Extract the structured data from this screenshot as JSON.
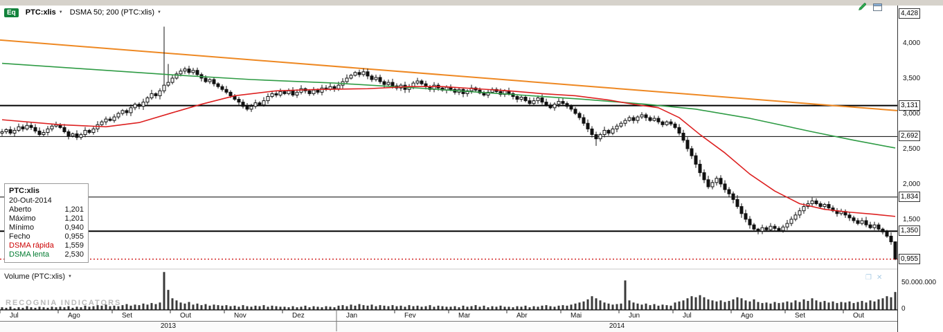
{
  "toolbar": {
    "instrument_badge": "Eq",
    "symbol": "PTC:xlis",
    "indicator": "DSMA 50; 200 (PTC:xlis)"
  },
  "icons": {
    "caret": "▼",
    "pane_restore": "❐",
    "pane_close": "✕"
  },
  "watermark": "RECOGNIA INDICATORS",
  "volume_pane": {
    "label": "Volume (PTC:xlis)"
  },
  "tooltip": {
    "title": "PTC:xlis",
    "date": "20-Out-2014",
    "rows": [
      {
        "label": "Aberto",
        "value": "1,201",
        "label_color": "#111111"
      },
      {
        "label": "Máximo",
        "value": "1,201",
        "label_color": "#111111"
      },
      {
        "label": "Mínimo",
        "value": "0,940",
        "label_color": "#111111"
      },
      {
        "label": "Fecho",
        "value": "0,955",
        "label_color": "#111111"
      },
      {
        "label": "DSMA rápida",
        "value": "1,559",
        "label_color": "#cc0000"
      },
      {
        "label": "DSMA lenta",
        "value": "2,530",
        "label_color": "#007a2f"
      }
    ]
  },
  "colors": {
    "accent_green_badge": "#12823b",
    "sma_fast": "#dd2020",
    "sma_slow": "#2e9b44",
    "trendline": "#ee8822",
    "last_price": "#cc0000",
    "candle": "#111111",
    "volume_bar": "#3a3a3a"
  },
  "chart_data": {
    "type": "candlestick",
    "title": "PTC:xlis daily candles with DSMA 50/200 overlays and volume",
    "ylim": [
      0.8,
      4.5
    ],
    "y_axis": {
      "ticks": [
        {
          "label": "4,000",
          "value": 4.0
        },
        {
          "label": "3,500",
          "value": 3.5
        },
        {
          "label": "3,000",
          "value": 3.0
        },
        {
          "label": "2,500",
          "value": 2.5
        },
        {
          "label": "2,000",
          "value": 2.0
        },
        {
          "label": "1,500",
          "value": 1.5
        }
      ],
      "badges": [
        {
          "label": "4,428",
          "value": 4.428
        },
        {
          "label": "3,131",
          "value": 3.131
        },
        {
          "label": "2,692",
          "value": 2.692
        },
        {
          "label": "1,834",
          "value": 1.834
        },
        {
          "label": "1,350",
          "value": 1.35
        },
        {
          "label": "0,955",
          "value": 0.955
        }
      ]
    },
    "volume_axis": {
      "max_value": 50,
      "labels": [
        {
          "text": "50.000.000",
          "value": 50
        },
        {
          "text": "0",
          "value": 0
        }
      ]
    },
    "x_axis": {
      "months": [
        {
          "label": "Jul",
          "start_index": 0
        },
        {
          "label": "Ago",
          "start_index": 14
        },
        {
          "label": "Set",
          "start_index": 27
        },
        {
          "label": "Out",
          "start_index": 41
        },
        {
          "label": "Nov",
          "start_index": 54
        },
        {
          "label": "Dez",
          "start_index": 68
        },
        {
          "label": "Jan",
          "start_index": 81
        },
        {
          "label": "Fev",
          "start_index": 95
        },
        {
          "label": "Mar",
          "start_index": 108
        },
        {
          "label": "Abr",
          "start_index": 122
        },
        {
          "label": "Mai",
          "start_index": 135
        },
        {
          "label": "Jun",
          "start_index": 149
        },
        {
          "label": "Jul",
          "start_index": 162
        },
        {
          "label": "Ago",
          "start_index": 176
        },
        {
          "label": "Set",
          "start_index": 189
        },
        {
          "label": "Out",
          "start_index": 203
        }
      ],
      "years": [
        {
          "label": "2013",
          "start_index": 0,
          "end_index": 81
        },
        {
          "label": "2014",
          "start_index": 81,
          "end_index": 216
        }
      ]
    },
    "candles": {
      "color": "#111111",
      "up_fill": "#ffffff",
      "open_first": 2.74,
      "closes": [
        2.76,
        2.79,
        2.74,
        2.78,
        2.83,
        2.8,
        2.85,
        2.82,
        2.77,
        2.72,
        2.75,
        2.8,
        2.84,
        2.86,
        2.82,
        2.76,
        2.7,
        2.73,
        2.68,
        2.72,
        2.78,
        2.75,
        2.8,
        2.86,
        2.9,
        2.94,
        2.92,
        2.97,
        3.02,
        3.06,
        3.03,
        3.1,
        3.15,
        3.12,
        3.18,
        3.24,
        3.3,
        3.27,
        3.34,
        3.42,
        3.46,
        3.52,
        3.58,
        3.62,
        3.65,
        3.6,
        3.63,
        3.57,
        3.52,
        3.47,
        3.5,
        3.44,
        3.4,
        3.36,
        3.32,
        3.27,
        3.22,
        3.18,
        3.12,
        3.08,
        3.12,
        3.17,
        3.14,
        3.2,
        3.26,
        3.3,
        3.28,
        3.33,
        3.3,
        3.34,
        3.28,
        3.32,
        3.37,
        3.34,
        3.3,
        3.35,
        3.32,
        3.38,
        3.36,
        3.4,
        3.37,
        3.42,
        3.47,
        3.52,
        3.56,
        3.6,
        3.57,
        3.61,
        3.55,
        3.5,
        3.53,
        3.47,
        3.43,
        3.46,
        3.41,
        3.38,
        3.42,
        3.36,
        3.4,
        3.45,
        3.48,
        3.44,
        3.4,
        3.36,
        3.42,
        3.38,
        3.35,
        3.39,
        3.36,
        3.32,
        3.36,
        3.3,
        3.34,
        3.38,
        3.35,
        3.31,
        3.28,
        3.32,
        3.36,
        3.33,
        3.29,
        3.34,
        3.3,
        3.26,
        3.22,
        3.25,
        3.2,
        3.16,
        3.2,
        3.24,
        3.18,
        3.14,
        3.1,
        3.15,
        3.19,
        3.16,
        3.12,
        3.08,
        3.02,
        2.96,
        2.88,
        2.8,
        2.72,
        2.66,
        2.72,
        2.78,
        2.74,
        2.8,
        2.84,
        2.88,
        2.92,
        2.96,
        2.92,
        2.97,
        3.0,
        2.96,
        2.92,
        2.95,
        2.9,
        2.86,
        2.9,
        2.87,
        2.82,
        2.74,
        2.64,
        2.52,
        2.42,
        2.3,
        2.18,
        2.08,
        1.98,
        2.04,
        2.1,
        2.02,
        1.94,
        1.88,
        1.8,
        1.7,
        1.6,
        1.52,
        1.44,
        1.38,
        1.35,
        1.4,
        1.37,
        1.42,
        1.39,
        1.36,
        1.41,
        1.46,
        1.52,
        1.58,
        1.64,
        1.7,
        1.74,
        1.78,
        1.74,
        1.7,
        1.73,
        1.68,
        1.64,
        1.6,
        1.63,
        1.58,
        1.54,
        1.5,
        1.46,
        1.5,
        1.44,
        1.4,
        1.44,
        1.38,
        1.34,
        1.28,
        1.2,
        0.955
      ],
      "high_overrides": {
        "39": 4.25,
        "40": 3.72,
        "215": 1.205
      },
      "low_overrides": {
        "143": 2.56,
        "215": 0.94
      }
    },
    "volumes_millions": [
      5,
      4,
      6,
      3,
      5,
      4,
      7,
      5,
      4,
      6,
      5,
      4,
      6,
      5,
      6,
      5,
      7,
      4,
      6,
      5,
      8,
      6,
      7,
      9,
      8,
      10,
      7,
      8,
      7,
      9,
      11,
      8,
      10,
      9,
      12,
      10,
      13,
      11,
      14,
      72,
      38,
      22,
      18,
      14,
      12,
      15,
      10,
      12,
      9,
      11,
      8,
      10,
      9,
      8,
      9,
      7,
      8,
      6,
      9,
      7,
      6,
      8,
      7,
      9,
      6,
      8,
      7,
      6,
      6,
      5,
      7,
      5,
      6,
      8,
      5,
      7,
      6,
      5,
      7,
      6,
      5,
      8,
      9,
      7,
      10,
      8,
      11,
      9,
      8,
      10,
      7,
      9,
      8,
      7,
      9,
      7,
      8,
      6,
      9,
      7,
      8,
      6,
      7,
      9,
      6,
      8,
      7,
      6,
      6,
      7,
      5,
      8,
      6,
      7,
      9,
      6,
      8,
      5,
      7,
      6,
      8,
      6,
      6,
      5,
      7,
      6,
      8,
      5,
      7,
      6,
      8,
      9,
      7,
      6,
      8,
      9,
      8,
      10,
      12,
      14,
      16,
      20,
      26,
      22,
      18,
      14,
      12,
      10,
      11,
      12,
      56,
      18,
      14,
      12,
      10,
      12,
      9,
      11,
      8,
      10,
      9,
      8,
      14,
      16,
      18,
      22,
      26,
      24,
      28,
      24,
      20,
      18,
      16,
      18,
      15,
      17,
      20,
      24,
      22,
      18,
      16,
      20,
      15,
      13,
      14,
      12,
      15,
      13,
      14,
      16,
      14,
      18,
      15,
      20,
      17,
      22,
      18,
      15,
      17,
      14,
      16,
      13,
      15,
      14,
      16,
      13,
      15,
      17,
      14,
      18,
      16,
      20,
      22,
      26,
      24,
      34
    ],
    "overlays": {
      "sma_fast": {
        "name": "DSMA 50 (rápida)",
        "color": "#dd2020",
        "points": [
          [
            0,
            2.93
          ],
          [
            14,
            2.86
          ],
          [
            25,
            2.83
          ],
          [
            33,
            2.89
          ],
          [
            41,
            3.03
          ],
          [
            48,
            3.15
          ],
          [
            56,
            3.27
          ],
          [
            66,
            3.34
          ],
          [
            76,
            3.36
          ],
          [
            88,
            3.37
          ],
          [
            98,
            3.4
          ],
          [
            106,
            3.4
          ],
          [
            114,
            3.37
          ],
          [
            122,
            3.34
          ],
          [
            130,
            3.3
          ],
          [
            138,
            3.27
          ],
          [
            146,
            3.21
          ],
          [
            152,
            3.15
          ],
          [
            158,
            3.1
          ],
          [
            163,
            2.96
          ],
          [
            168,
            2.72
          ],
          [
            174,
            2.46
          ],
          [
            180,
            2.16
          ],
          [
            186,
            1.92
          ],
          [
            192,
            1.74
          ],
          [
            198,
            1.66
          ],
          [
            204,
            1.62
          ],
          [
            210,
            1.59
          ],
          [
            215,
            1.56
          ]
        ]
      },
      "sma_slow": {
        "name": "DSMA 200 (lenta)",
        "color": "#2e9b44",
        "points": [
          [
            0,
            3.73
          ],
          [
            20,
            3.65
          ],
          [
            40,
            3.57
          ],
          [
            60,
            3.5
          ],
          [
            80,
            3.45
          ],
          [
            100,
            3.38
          ],
          [
            120,
            3.3
          ],
          [
            140,
            3.22
          ],
          [
            155,
            3.15
          ],
          [
            167,
            3.08
          ],
          [
            180,
            2.95
          ],
          [
            195,
            2.76
          ],
          [
            205,
            2.64
          ],
          [
            215,
            2.53
          ]
        ]
      },
      "trendline": {
        "color": "#ee8822",
        "price_start": 4.06,
        "price_end": 3.06
      },
      "hlines": [
        {
          "value": 3.131,
          "width": 2
        },
        {
          "value": 2.692,
          "width": 1
        },
        {
          "value": 1.834,
          "width": 1
        },
        {
          "value": 1.35,
          "width": 2
        }
      ],
      "last_price_line": {
        "value": 0.955,
        "color": "#cc0000",
        "style": "dotted"
      }
    }
  }
}
